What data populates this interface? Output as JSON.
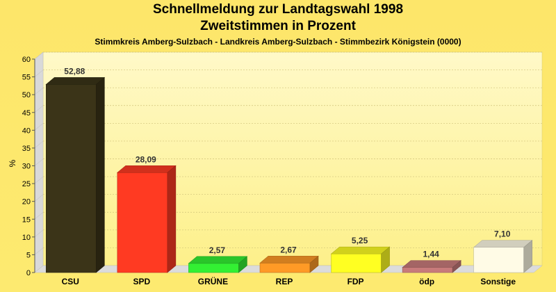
{
  "chart_data": {
    "type": "bar",
    "title": "Schnellmeldung zur Landtagswahl 1998",
    "subtitle": "Zweitstimmen in Prozent",
    "caption": "Stimmkreis Amberg-Sulzbach - Landkreis Amberg-Sulzbach - Stimmbezirk Königstein (0000)",
    "xlabel": "",
    "ylabel": "%",
    "ylim": [
      0,
      60
    ],
    "yticks": [
      0,
      5,
      10,
      15,
      20,
      25,
      30,
      35,
      40,
      45,
      50,
      55,
      60
    ],
    "categories": [
      "CSU",
      "SPD",
      "GRÜNE",
      "REP",
      "FDP",
      "ödp",
      "Sonstige"
    ],
    "values": [
      52.88,
      28.09,
      2.57,
      2.67,
      5.25,
      1.44,
      7.1
    ],
    "value_labels": [
      "52,88",
      "28,09",
      "2,57",
      "2,67",
      "5,25",
      "1,44",
      "7,10"
    ],
    "colors": [
      "#3b3418",
      "#ff3a22",
      "#33f033",
      "#ff9a26",
      "#ffff22",
      "#c87b7b",
      "#fffbe6"
    ],
    "grid": true
  }
}
